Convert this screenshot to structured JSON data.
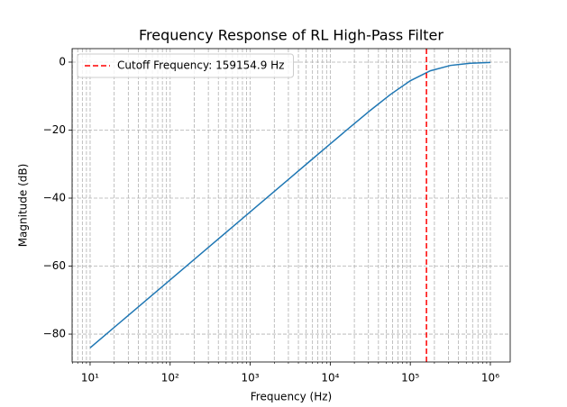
{
  "chart_data": {
    "type": "line",
    "title": "Frequency Response of RL High-Pass Filter",
    "x_label": "Frequency (Hz)",
    "y_label": "Magnitude (dB)",
    "x": [
      10,
      17.78,
      31.62,
      56.23,
      100,
      177.8,
      316.2,
      562.3,
      1000,
      1778,
      3162,
      5623,
      10000,
      17783,
      31623,
      56234,
      100000,
      177828,
      316228,
      562341,
      1000000
    ],
    "series": [
      {
        "color": "#1f77b4",
        "values": [
          -84.04,
          -79.04,
          -74.04,
          -69.04,
          -64.04,
          -59.04,
          -54.04,
          -49.04,
          -44.04,
          -39.04,
          -34.04,
          -29.04,
          -24.05,
          -19.09,
          -14.2,
          -9.55,
          -5.48,
          -2.55,
          -0.98,
          -0.33,
          -0.11
        ]
      }
    ],
    "vline": {
      "name": "Cutoff Frequency: 159154.9 Hz",
      "value": 159154.9,
      "color": "#ff0000"
    },
    "xscale": "log",
    "xlim": [
      5.96,
      1770000
    ],
    "ylim": [
      3.97,
      -88.2
    ],
    "xticks": [
      {
        "value": 10,
        "label": "10¹"
      },
      {
        "value": 100,
        "label": "10²"
      },
      {
        "value": 1000,
        "label": "10³"
      },
      {
        "value": 10000,
        "label": "10⁴"
      },
      {
        "value": 100000,
        "label": "10⁵"
      },
      {
        "value": 1000000,
        "label": "10⁶"
      }
    ],
    "xminorticks": [
      6,
      7,
      8,
      9,
      20,
      30,
      40,
      50,
      60,
      70,
      80,
      90,
      200,
      300,
      400,
      500,
      600,
      700,
      800,
      900,
      2000,
      3000,
      4000,
      5000,
      6000,
      7000,
      8000,
      9000,
      20000,
      30000,
      40000,
      50000,
      60000,
      70000,
      80000,
      90000,
      200000,
      300000,
      400000,
      500000,
      600000,
      700000,
      800000,
      900000
    ],
    "yticks": [
      0,
      {
        "value": -20,
        "label": "−20"
      },
      {
        "value": -40,
        "label": "−40"
      },
      {
        "value": -60,
        "label": "−60"
      },
      {
        "value": -80,
        "label": "−80"
      }
    ],
    "grid": true,
    "legend": "upper left"
  }
}
